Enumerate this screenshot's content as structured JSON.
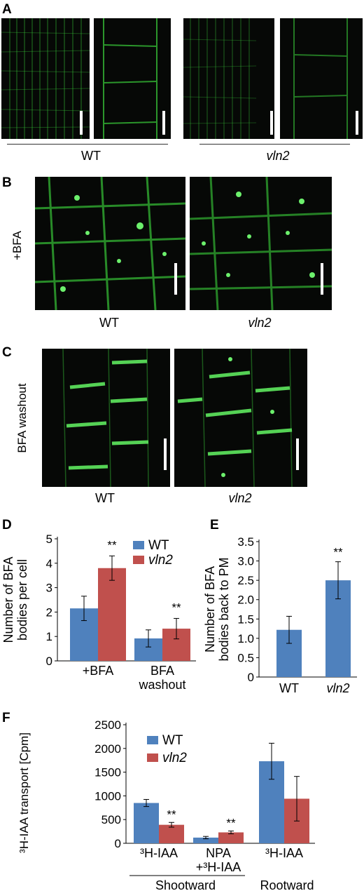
{
  "panels": {
    "A": {
      "label": "A",
      "captions": [
        "WT",
        "vln2"
      ]
    },
    "B": {
      "label": "B",
      "side_label": "+BFA",
      "captions": [
        "WT",
        "vln2"
      ]
    },
    "C": {
      "label": "C",
      "side_label": "BFA  washout",
      "captions": [
        "WT",
        "vln2"
      ]
    },
    "D": {
      "label": "D"
    },
    "E": {
      "label": "E"
    },
    "F": {
      "label": "F",
      "group_labels": [
        "Shootward",
        "Rootward"
      ]
    }
  },
  "colors": {
    "wt": "#4f81bd",
    "vln2": "#c0504d",
    "fluorescence": "#3bd23b"
  },
  "chart_data": [
    {
      "id": "D",
      "type": "bar",
      "ylabel": "Number of BFA bodies per cell",
      "ylim": [
        0,
        5
      ],
      "yticks": [
        0,
        1,
        2,
        3,
        4,
        5
      ],
      "categories": [
        "+BFA",
        "BFA washout"
      ],
      "series": [
        {
          "name": "WT",
          "values": [
            2.15,
            0.92
          ],
          "errors": [
            0.5,
            0.35
          ]
        },
        {
          "name": "vln2",
          "values": [
            3.8,
            1.32
          ],
          "errors": [
            0.5,
            0.42
          ]
        }
      ],
      "annotations": [
        "**",
        "**"
      ],
      "legend_position": "top-right"
    },
    {
      "id": "E",
      "type": "bar",
      "ylabel": "Number of BFA bodies back to PM",
      "ylim": [
        0,
        3.5
      ],
      "yticks": [
        "0",
        "0.5",
        "1.0",
        "1.5",
        "2.0",
        "2.5",
        "3.0",
        "3.5"
      ],
      "categories": [
        "WT",
        "vln2"
      ],
      "series": [
        {
          "values": [
            1.22,
            2.5
          ],
          "errors": [
            0.35,
            0.48
          ]
        }
      ],
      "annotations": [
        "**"
      ]
    },
    {
      "id": "F",
      "type": "bar",
      "ylabel": "³H-IAA transport [Cpm]",
      "ylim": [
        0,
        2500
      ],
      "yticks": [
        0,
        500,
        1000,
        1500,
        2000,
        2500
      ],
      "categories": [
        "³H-IAA",
        "NPA +³H-IAA",
        "³H-IAA"
      ],
      "series": [
        {
          "name": "WT",
          "values": [
            850,
            120,
            1730
          ],
          "errors": [
            75,
            25,
            380
          ]
        },
        {
          "name": "vln2",
          "values": [
            390,
            230,
            940
          ],
          "errors": [
            50,
            30,
            470
          ]
        }
      ],
      "annotations": [
        "**",
        "**"
      ],
      "legend_position": "top-left"
    }
  ]
}
